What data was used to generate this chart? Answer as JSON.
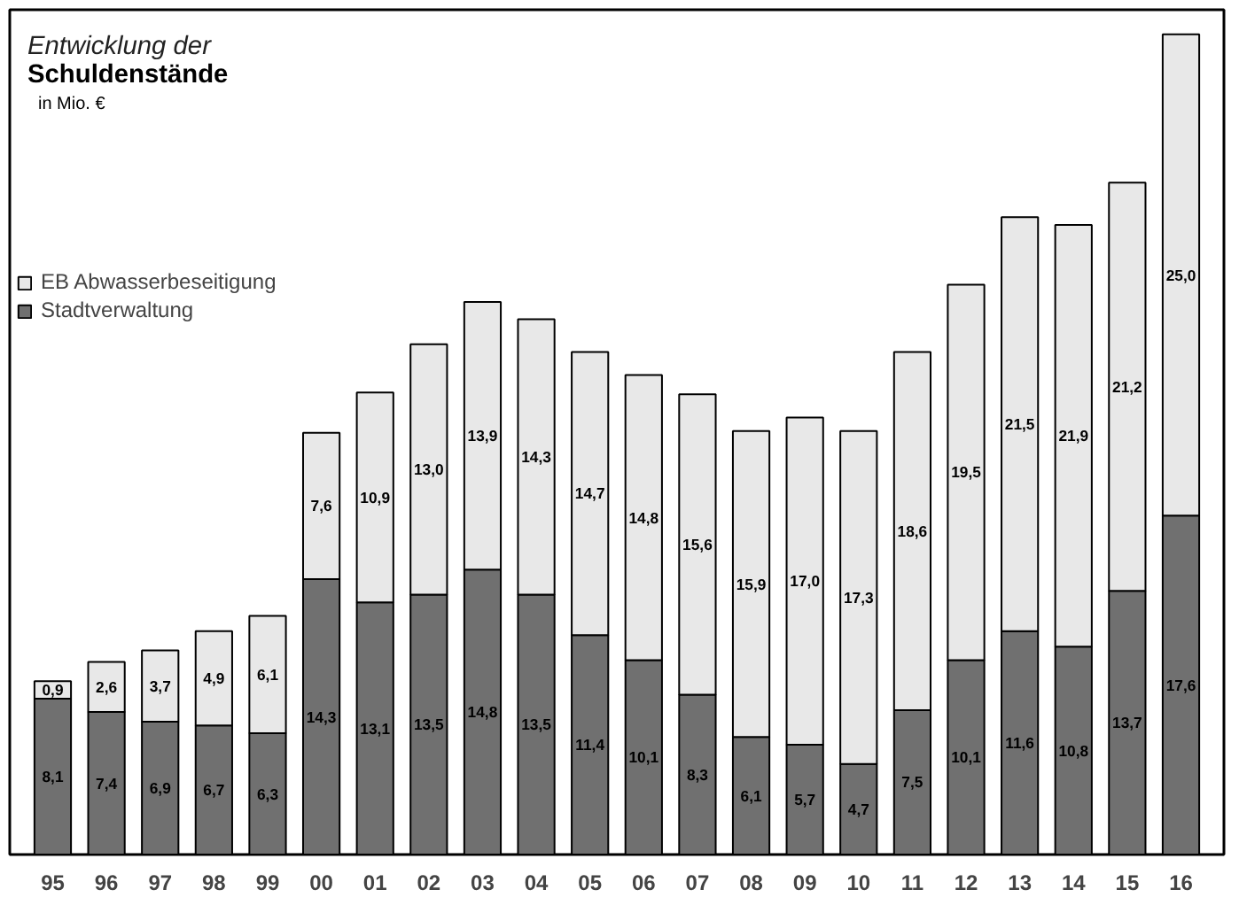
{
  "chart_data": {
    "type": "bar",
    "stacked": true,
    "title": "Entwicklung der",
    "subtitle": "Schuldenstände",
    "annotations": [
      "in Mio. €"
    ],
    "categories": [
      "95",
      "96",
      "97",
      "98",
      "99",
      "00",
      "01",
      "02",
      "03",
      "04",
      "05",
      "06",
      "07",
      "08",
      "09",
      "10",
      "11",
      "12",
      "13",
      "14",
      "15",
      "16"
    ],
    "series": [
      {
        "name": "Stadtverwaltung",
        "color": "#707070",
        "values": [
          8.1,
          7.4,
          6.9,
          6.7,
          6.3,
          14.3,
          13.1,
          13.5,
          14.8,
          13.5,
          11.4,
          10.1,
          8.3,
          6.1,
          5.7,
          4.7,
          7.5,
          10.1,
          11.6,
          10.8,
          13.7,
          17.6
        ],
        "value_labels": [
          "8,1",
          "7,4",
          "6,9",
          "6,7",
          "6,3",
          "14,3",
          "13,1",
          "13,5",
          "14,8",
          "13,5",
          "11,4",
          "10,1",
          "8,3",
          "6,1",
          "5,7",
          "4,7",
          "7,5",
          "10,1",
          "11,6",
          "10,8",
          "13,7",
          "17,6"
        ]
      },
      {
        "name": "EB Abwasserbeseitigung",
        "color": "#e8e8e8",
        "values": [
          0.9,
          2.6,
          3.7,
          4.9,
          6.1,
          7.6,
          10.9,
          13.0,
          13.9,
          14.3,
          14.7,
          14.8,
          15.6,
          15.9,
          17.0,
          17.3,
          18.6,
          19.5,
          21.5,
          21.9,
          21.2,
          25.0
        ],
        "value_labels": [
          "0,9",
          "2,6",
          "3,7",
          "4,9",
          "6,1",
          "7,6",
          "10,9",
          "13,0",
          "13,9",
          "14,3",
          "14,7",
          "14,8",
          "15,6",
          "15,9",
          "17,0",
          "17,3",
          "18,6",
          "19,5",
          "21,5",
          "21,9",
          "21,2",
          "25,0"
        ]
      }
    ],
    "legend": "top left",
    "grid": false,
    "tick_labels": "x"
  }
}
